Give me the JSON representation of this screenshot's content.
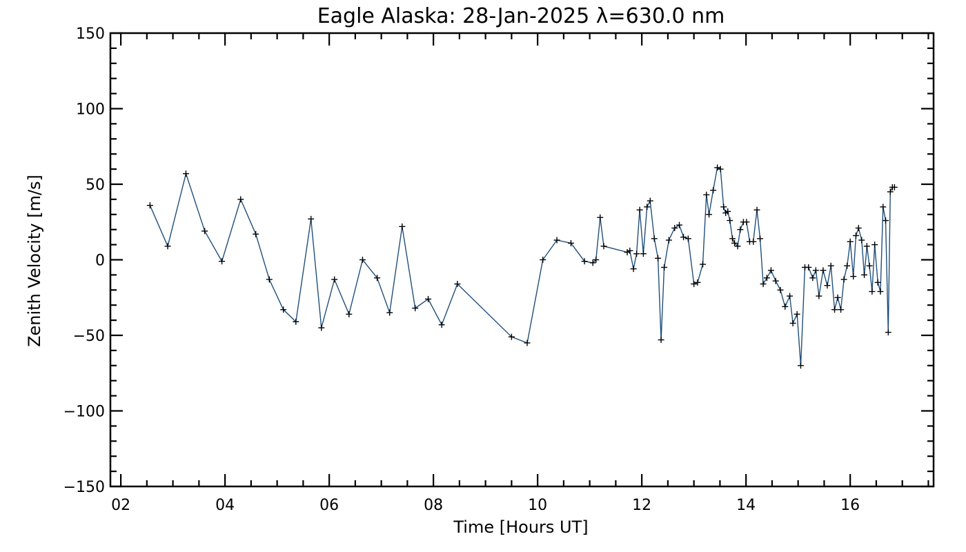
{
  "chart_data": {
    "type": "line",
    "title": "Eagle Alaska: 28-Jan-2025 λ=630.0 nm",
    "xlabel": "Time [Hours UT]",
    "ylabel": "Zenith Velocity [m/s]",
    "xlim": [
      1.8,
      17.6
    ],
    "ylim": [
      -150,
      150
    ],
    "xticks": [
      2,
      4,
      6,
      8,
      10,
      12,
      14,
      16
    ],
    "xtick_labels": [
      "02",
      "04",
      "06",
      "08",
      "10",
      "12",
      "14",
      "16"
    ],
    "yticks": [
      -150,
      -100,
      -50,
      0,
      50,
      100,
      150
    ],
    "ytick_labels": [
      "−150",
      "−100",
      "−50",
      "0",
      "50",
      "100",
      "150"
    ],
    "grid": false,
    "marker": "+",
    "line_color": "#1f4e79",
    "series": [
      {
        "name": "Zenith Velocity",
        "x": [
          2.56,
          2.9,
          3.25,
          3.61,
          3.94,
          4.3,
          4.59,
          4.85,
          5.12,
          5.36,
          5.65,
          5.85,
          6.1,
          6.38,
          6.64,
          6.92,
          7.16,
          7.4,
          7.65,
          7.9,
          8.16,
          8.46,
          9.5,
          9.8,
          10.1,
          10.37,
          10.64,
          10.9,
          11.06,
          11.12,
          11.2,
          11.27,
          11.72,
          11.77,
          11.84,
          11.9,
          11.96,
          12.03,
          12.1,
          12.16,
          12.24,
          12.31,
          12.37,
          12.43,
          12.52,
          12.63,
          12.72,
          12.8,
          12.89,
          13.0,
          13.07,
          13.17,
          13.24,
          13.29,
          13.37,
          13.45,
          13.51,
          13.57,
          13.61,
          13.65,
          13.69,
          13.74,
          13.78,
          13.84,
          13.89,
          13.95,
          14.01,
          14.07,
          14.14,
          14.21,
          14.27,
          14.33,
          14.4,
          14.48,
          14.57,
          14.66,
          14.75,
          14.84,
          14.9,
          14.98,
          15.05,
          15.13,
          15.2,
          15.28,
          15.34,
          15.4,
          15.48,
          15.56,
          15.63,
          15.7,
          15.76,
          15.82,
          15.88,
          15.94,
          16.0,
          16.06,
          16.11,
          16.16,
          16.22,
          16.27,
          16.32,
          16.37,
          16.42,
          16.47,
          16.53,
          16.58,
          16.63,
          16.68,
          16.73,
          16.77,
          16.81,
          16.85
        ],
        "values": [
          36,
          9,
          57,
          19,
          -1,
          40,
          17,
          -13,
          -33,
          -41,
          27,
          -45,
          -13,
          -36,
          0,
          -12,
          -35,
          22,
          -32,
          -26,
          -43,
          -16,
          -51,
          -55,
          0,
          13,
          11,
          -1,
          -2,
          0,
          28,
          9,
          5,
          6,
          -6,
          4,
          33,
          4,
          35,
          39,
          14,
          1,
          -53,
          -5,
          13,
          21,
          23,
          15,
          14,
          -16,
          -15,
          -3,
          43,
          30,
          46,
          61,
          60,
          35,
          31,
          32,
          26,
          14,
          11,
          9,
          20,
          25,
          25,
          12,
          12,
          33,
          14,
          -16,
          -12,
          -7,
          -14,
          -20,
          -31,
          -24,
          -42,
          -36,
          -70,
          -5,
          -5,
          -12,
          -7,
          -24,
          -7,
          -17,
          -4,
          -33,
          -25,
          -33,
          -13,
          -4,
          12,
          -11,
          16,
          21,
          13,
          -10,
          9,
          -4,
          -21,
          10,
          -15,
          -21,
          35,
          26,
          -48,
          45,
          48,
          48
        ]
      }
    ]
  }
}
